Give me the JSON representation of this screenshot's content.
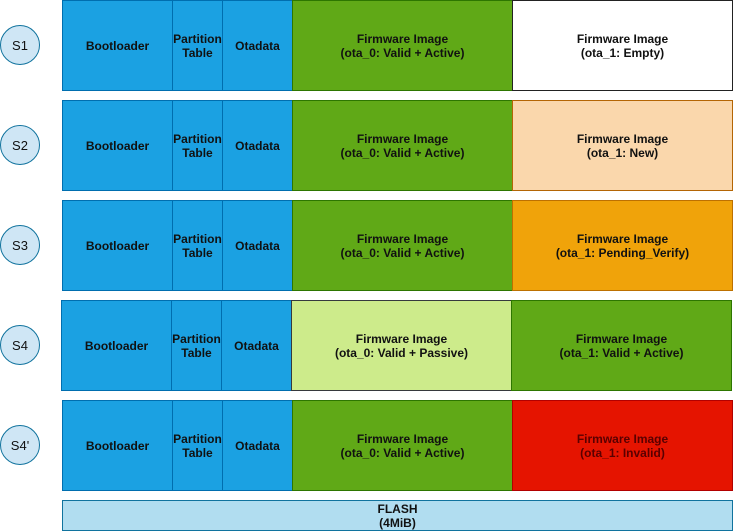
{
  "colors": {
    "blue": "#1ba1e2",
    "green": "#60a917",
    "light_green": "#cdeb8b",
    "peach": "#fad7ac",
    "orange": "#f0a30a",
    "red": "#e51400",
    "white": "#ffffff",
    "flash": "#b1ddf0"
  },
  "rows": [
    {
      "state": "S1",
      "bootloader": "Bootloader",
      "partition_table": "Partition\nTable",
      "otadata": "Otadata",
      "ota_0": {
        "label": "Firmware Image\n(ota_0: Valid + Active)",
        "color": "green"
      },
      "ota_1": {
        "label": "Firmware Image\n(ota_1: Empty)",
        "color": "white"
      }
    },
    {
      "state": "S2",
      "bootloader": "Bootloader",
      "partition_table": "Partition\nTable",
      "otadata": "Otadata",
      "ota_0": {
        "label": "Firmware Image\n(ota_0: Valid + Active)",
        "color": "green"
      },
      "ota_1": {
        "label": "Firmware Image\n(ota_1: New)",
        "color": "peach"
      }
    },
    {
      "state": "S3",
      "bootloader": "Bootloader",
      "partition_table": "Partition\nTable",
      "otadata": "Otadata",
      "ota_0": {
        "label": "Firmware Image\n(ota_0: Valid + Active)",
        "color": "green"
      },
      "ota_1": {
        "label": "Firmware Image\n(ota_1: Pending_Verify)",
        "color": "orange"
      }
    },
    {
      "state": "S4",
      "bootloader": "Bootloader",
      "partition_table": "Partition\nTable",
      "otadata": "Otadata",
      "ota_0": {
        "label": "Firmware Image\n(ota_0: Valid + Passive)",
        "color": "light_green"
      },
      "ota_1": {
        "label": "Firmware Image\n(ota_1: Valid + Active)",
        "color": "green"
      }
    },
    {
      "state": "S4'",
      "bootloader": "Bootloader",
      "partition_table": "Partition\nTable",
      "otadata": "Otadata",
      "ota_0": {
        "label": "Firmware Image\n(ota_0: Valid + Active)",
        "color": "green"
      },
      "ota_1": {
        "label": "Firmware Image\n(ota_1: Invalid)",
        "color": "red"
      }
    }
  ],
  "flash": {
    "label": "FLASH\n(4MiB)"
  }
}
